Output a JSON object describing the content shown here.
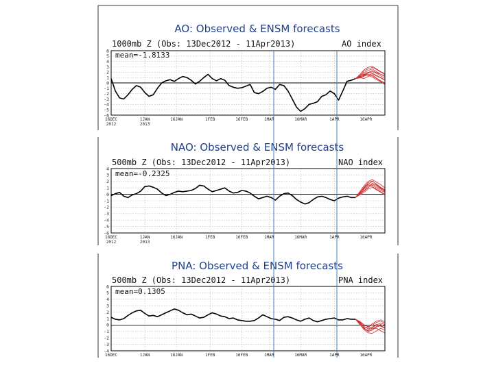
{
  "chart_data": [
    {
      "type": "line",
      "title": "AO: Observed & ENSM forecasts",
      "subtitle": "1000mb Z (Obs: 13Dec2012 - 11Apr2013)",
      "index_label": "AO index",
      "mean_text": "mean=-1.8133",
      "ylim": [
        -6,
        6
      ],
      "yticks": [
        6,
        5,
        4,
        3,
        2,
        1,
        0,
        -1,
        -2,
        -3,
        -4,
        -5,
        -6
      ],
      "xticks": [
        {
          "day": 0,
          "label": "16DEC",
          "label2": "2012"
        },
        {
          "day": 16,
          "label": "1JAN",
          "label2": "2013"
        },
        {
          "day": 31,
          "label": "16JAN",
          "label2": ""
        },
        {
          "day": 47,
          "label": "1FEB",
          "label2": ""
        },
        {
          "day": 62,
          "label": "16FEB",
          "label2": ""
        },
        {
          "day": 75,
          "label": "1MAR",
          "label2": ""
        },
        {
          "day": 90,
          "label": "16MAR",
          "label2": ""
        },
        {
          "day": 106,
          "label": "1APR",
          "label2": ""
        },
        {
          "day": 121,
          "label": "16APR",
          "label2": ""
        }
      ],
      "x_range_days": [
        0,
        130
      ],
      "series": [
        {
          "name": "Observed",
          "color": "#000000",
          "x": [
            0,
            2,
            4,
            6,
            8,
            10,
            12,
            14,
            16,
            18,
            20,
            22,
            24,
            26,
            28,
            30,
            32,
            34,
            36,
            38,
            40,
            42,
            44,
            46,
            48,
            50,
            52,
            54,
            56,
            58,
            60,
            62,
            64,
            66,
            68,
            70,
            72,
            74,
            76,
            78,
            80,
            82,
            84,
            86,
            88,
            90,
            92,
            94,
            96,
            98,
            100,
            102,
            104,
            106,
            108,
            110,
            112,
            114,
            116
          ],
          "y": [
            0.8,
            -1.5,
            -2.8,
            -3.0,
            -2.2,
            -1.2,
            -0.5,
            -0.8,
            -1.8,
            -2.5,
            -2.2,
            -1.0,
            0.0,
            0.4,
            0.6,
            0.3,
            0.8,
            1.2,
            1.0,
            0.5,
            -0.2,
            0.3,
            1.0,
            1.6,
            0.8,
            0.4,
            0.8,
            0.5,
            -0.5,
            -0.8,
            -1.0,
            -0.9,
            -0.6,
            -0.3,
            -1.8,
            -2.0,
            -1.6,
            -1.0,
            -0.8,
            -1.2,
            -0.3,
            -0.5,
            -1.5,
            -3.0,
            -4.5,
            -5.3,
            -4.8,
            -4.0,
            -3.8,
            -3.5,
            -2.5,
            -2.2,
            -1.5,
            -2.0,
            -3.2,
            -1.5,
            0.3,
            0.5,
            0.8
          ]
        },
        {
          "name": "ENSM",
          "color": "#cc3333",
          "x": [
            116,
            118,
            120,
            122,
            124,
            126,
            128,
            130
          ],
          "members": [
            [
              0.8,
              1.4,
              1.9,
              2.3,
              2.6,
              2.1,
              1.6,
              1.2
            ],
            [
              0.8,
              1.1,
              1.5,
              1.8,
              2.1,
              1.8,
              1.3,
              0.9
            ],
            [
              0.8,
              1.2,
              2.2,
              2.6,
              2.9,
              2.5,
              2.0,
              1.6
            ],
            [
              0.8,
              0.9,
              1.3,
              1.5,
              1.7,
              1.3,
              0.9,
              0.5
            ],
            [
              0.8,
              1.0,
              0.8,
              1.2,
              1.5,
              0.9,
              0.4,
              0.0
            ],
            [
              0.8,
              1.3,
              1.7,
              1.4,
              1.1,
              0.6,
              0.2,
              -0.2
            ],
            [
              0.8,
              1.5,
              2.4,
              2.9,
              3.1,
              2.6,
              2.1,
              1.7
            ],
            [
              0.8,
              1.0,
              1.6,
              2.0,
              1.8,
              1.4,
              1.0,
              0.6
            ],
            [
              0.8,
              1.2,
              1.4,
              1.6,
              1.3,
              0.8,
              0.3,
              -0.3
            ],
            [
              0.8,
              0.9,
              1.2,
              1.9,
              2.3,
              1.9,
              1.6,
              1.4
            ]
          ]
        }
      ]
    },
    {
      "type": "line",
      "title": "NAO: Observed & ENSM forecasts",
      "subtitle": "500mb Z (Obs: 13Dec2012 - 11Apr2013)",
      "index_label": "NAO index",
      "mean_text": "mean=-0.2325",
      "ylim": [
        -6,
        4
      ],
      "yticks": [
        4,
        3,
        2,
        1,
        0,
        -1,
        -2,
        -3,
        -4,
        -5,
        -6
      ],
      "xticks": [
        {
          "day": 0,
          "label": "16DEC",
          "label2": "2012"
        },
        {
          "day": 16,
          "label": "1JAN",
          "label2": "2013"
        },
        {
          "day": 31,
          "label": "16JAN",
          "label2": ""
        },
        {
          "day": 47,
          "label": "1FEB",
          "label2": ""
        },
        {
          "day": 62,
          "label": "16FEB",
          "label2": ""
        },
        {
          "day": 75,
          "label": "1MAR",
          "label2": ""
        },
        {
          "day": 90,
          "label": "16MAR",
          "label2": ""
        },
        {
          "day": 106,
          "label": "1APR",
          "label2": ""
        },
        {
          "day": 121,
          "label": "16APR",
          "label2": ""
        }
      ],
      "x_range_days": [
        0,
        130
      ],
      "series": [
        {
          "name": "Observed",
          "color": "#000000",
          "x": [
            0,
            2,
            4,
            6,
            8,
            10,
            12,
            14,
            16,
            18,
            20,
            22,
            24,
            26,
            28,
            30,
            32,
            34,
            36,
            38,
            40,
            42,
            44,
            46,
            48,
            50,
            52,
            54,
            56,
            58,
            60,
            62,
            64,
            66,
            68,
            70,
            72,
            74,
            76,
            78,
            80,
            82,
            84,
            86,
            88,
            90,
            92,
            94,
            96,
            98,
            100,
            102,
            104,
            106,
            108,
            110,
            112,
            114,
            116
          ],
          "y": [
            -0.2,
            0.1,
            0.3,
            -0.3,
            -0.5,
            -0.1,
            0.1,
            0.5,
            1.2,
            1.3,
            1.1,
            0.8,
            0.2,
            -0.2,
            0.0,
            0.3,
            0.5,
            0.4,
            0.5,
            0.6,
            0.9,
            1.4,
            1.3,
            0.8,
            0.4,
            0.6,
            0.8,
            1.0,
            0.5,
            0.2,
            0.3,
            0.6,
            0.5,
            0.2,
            -0.3,
            -0.7,
            -0.5,
            -0.3,
            -0.5,
            -0.9,
            -0.3,
            0.1,
            0.2,
            -0.2,
            -0.8,
            -1.2,
            -1.5,
            -1.3,
            -0.8,
            -0.4,
            -0.3,
            -0.5,
            -0.8,
            -1.0,
            -0.6,
            -0.4,
            -0.3,
            -0.5,
            -0.5
          ]
        },
        {
          "name": "ENSM",
          "color": "#cc3333",
          "x": [
            116,
            118,
            120,
            122,
            124,
            126,
            128,
            130
          ],
          "members": [
            [
              -0.5,
              0.2,
              1.0,
              1.6,
              2.0,
              1.6,
              1.1,
              0.7
            ],
            [
              -0.5,
              0.0,
              0.6,
              1.1,
              1.4,
              1.0,
              0.6,
              0.3
            ],
            [
              -0.5,
              0.4,
              1.3,
              2.0,
              2.3,
              1.9,
              1.5,
              1.0
            ],
            [
              -0.5,
              -0.1,
              0.3,
              0.8,
              1.1,
              0.7,
              0.3,
              -0.1
            ],
            [
              -0.5,
              0.1,
              0.8,
              1.3,
              1.7,
              1.4,
              0.9,
              0.4
            ],
            [
              -0.5,
              0.3,
              0.9,
              1.5,
              1.2,
              0.8,
              0.4,
              0.0
            ],
            [
              -0.5,
              0.0,
              0.5,
              1.0,
              1.6,
              1.2,
              0.8,
              0.5
            ],
            [
              -0.5,
              0.2,
              1.1,
              1.8,
              2.1,
              1.5,
              1.0,
              0.6
            ]
          ]
        }
      ]
    },
    {
      "type": "line",
      "title": "PNA: Observed & ENSM forecasts",
      "subtitle": "500mb Z (Obs: 13Dec2012 - 11Apr2013)",
      "index_label": "PNA index",
      "mean_text": "mean=0.1305",
      "ylim": [
        -4,
        6
      ],
      "yticks": [
        6,
        5,
        4,
        3,
        2,
        1,
        0,
        -1,
        -2,
        -3,
        -4
      ],
      "xticks": [
        {
          "day": 0,
          "label": "16DEC",
          "label2": ""
        },
        {
          "day": 16,
          "label": "1JAN",
          "label2": ""
        },
        {
          "day": 31,
          "label": "16JAN",
          "label2": ""
        },
        {
          "day": 47,
          "label": "1FEB",
          "label2": ""
        },
        {
          "day": 62,
          "label": "16FEB",
          "label2": ""
        },
        {
          "day": 75,
          "label": "1MAR",
          "label2": ""
        },
        {
          "day": 90,
          "label": "16MAR",
          "label2": ""
        },
        {
          "day": 106,
          "label": "1APR",
          "label2": ""
        },
        {
          "day": 121,
          "label": "16APR",
          "label2": ""
        }
      ],
      "x_range_days": [
        0,
        130
      ],
      "series": [
        {
          "name": "Observed",
          "color": "#000000",
          "x": [
            0,
            2,
            4,
            6,
            8,
            10,
            12,
            14,
            16,
            18,
            20,
            22,
            24,
            26,
            28,
            30,
            32,
            34,
            36,
            38,
            40,
            42,
            44,
            46,
            48,
            50,
            52,
            54,
            56,
            58,
            60,
            62,
            64,
            66,
            68,
            70,
            72,
            74,
            76,
            78,
            80,
            82,
            84,
            86,
            88,
            90,
            92,
            94,
            96,
            98,
            100,
            102,
            104,
            106,
            108,
            110,
            112,
            114,
            116
          ],
          "y": [
            1.2,
            0.9,
            0.8,
            1.0,
            1.5,
            1.9,
            2.2,
            2.3,
            1.8,
            1.4,
            1.5,
            1.3,
            1.6,
            1.9,
            2.2,
            2.5,
            2.3,
            1.9,
            1.6,
            1.7,
            1.4,
            1.1,
            1.2,
            1.6,
            1.9,
            1.7,
            1.4,
            1.3,
            1.0,
            1.1,
            0.8,
            0.7,
            0.6,
            0.6,
            0.7,
            1.1,
            1.6,
            1.3,
            1.0,
            0.9,
            0.7,
            1.2,
            1.3,
            1.1,
            0.8,
            0.6,
            0.9,
            1.1,
            0.7,
            0.5,
            0.7,
            0.9,
            1.0,
            1.1,
            0.8,
            0.8,
            1.0,
            0.9,
            0.9
          ]
        },
        {
          "name": "ENSM",
          "color": "#cc3333",
          "x": [
            116,
            118,
            120,
            122,
            124,
            126,
            128,
            130
          ],
          "members": [
            [
              0.9,
              0.5,
              -0.2,
              -0.6,
              -0.4,
              0.0,
              0.3,
              0.1
            ],
            [
              0.9,
              0.3,
              -0.5,
              -1.0,
              -0.8,
              -0.3,
              -0.1,
              -0.4
            ],
            [
              0.9,
              0.6,
              0.1,
              -0.3,
              0.0,
              0.4,
              0.6,
              0.3
            ],
            [
              0.9,
              0.2,
              -0.7,
              -1.2,
              -1.3,
              -0.9,
              -0.5,
              -0.8
            ],
            [
              0.9,
              0.4,
              -0.3,
              -0.4,
              0.2,
              0.6,
              0.8,
              0.5
            ],
            [
              0.9,
              0.1,
              -0.4,
              -0.9,
              -0.6,
              -0.5,
              -0.9,
              -1.2
            ],
            [
              0.9,
              0.5,
              -0.1,
              -0.2,
              -0.6,
              -0.2,
              0.1,
              -0.2
            ],
            [
              0.9,
              0.3,
              -0.6,
              -0.8,
              -0.3,
              0.1,
              -0.2,
              -0.5
            ]
          ]
        }
      ]
    }
  ]
}
